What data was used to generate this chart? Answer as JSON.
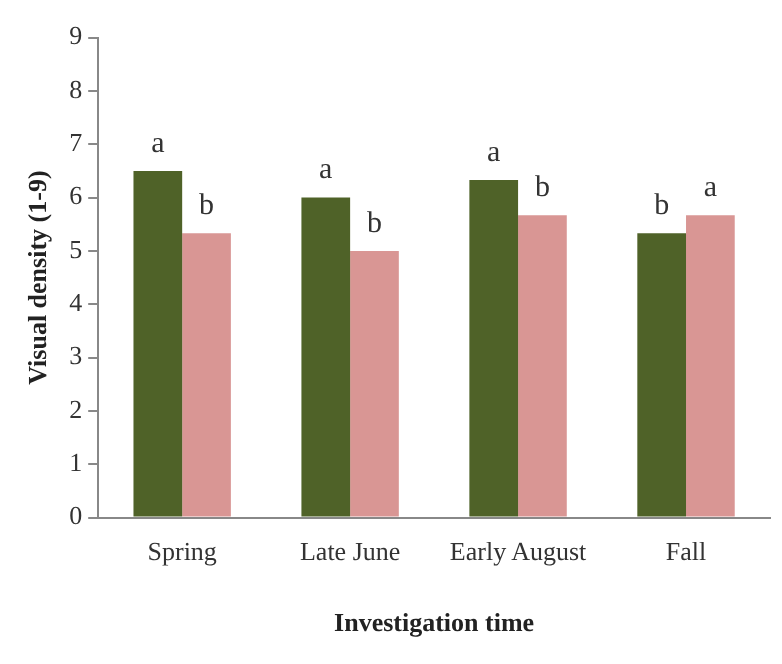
{
  "chart_data": {
    "type": "bar",
    "xlabel": "Investigation time",
    "ylabel": "Visual density (1-9)",
    "categories": [
      "Spring",
      "Late June",
      "Early August",
      "Fall"
    ],
    "series": [
      {
        "color": "#4f6228",
        "values": [
          6.5,
          6.0,
          6.33,
          5.33
        ]
      },
      {
        "color": "#d99694",
        "values": [
          5.33,
          5.0,
          5.67,
          5.67
        ]
      }
    ],
    "ylim": [
      0,
      9
    ],
    "yticks": [
      0,
      1,
      2,
      3,
      4,
      5,
      6,
      7,
      8,
      9
    ],
    "grid": false,
    "legend": false,
    "annotations": [
      {
        "text": "a",
        "x": "Spring",
        "y": 6.5
      },
      {
        "text": "b",
        "x": "Spring",
        "y": 5.33
      },
      {
        "text": "a",
        "x": "Late June",
        "y": 6.0
      },
      {
        "text": "b",
        "x": "Late June",
        "y": 5.0
      },
      {
        "text": "a",
        "x": "Early August",
        "y": 6.33
      },
      {
        "text": "b",
        "x": "Early August",
        "y": 5.67
      },
      {
        "text": "b",
        "x": "Fall",
        "y": 5.33
      },
      {
        "text": "a",
        "x": "Fall",
        "y": 5.67
      }
    ]
  }
}
